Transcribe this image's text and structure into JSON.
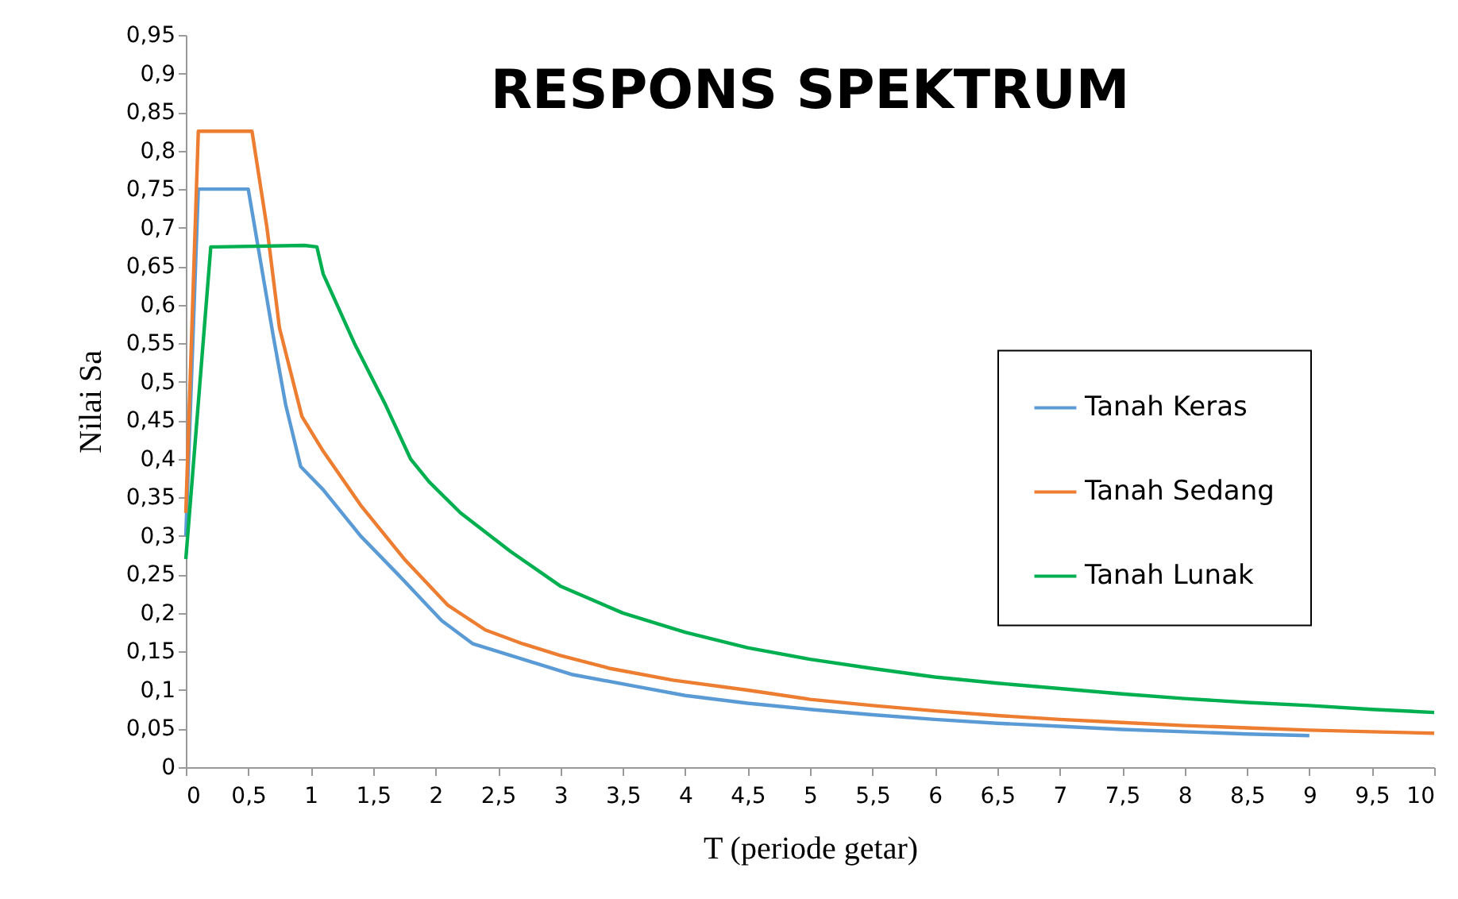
{
  "chart_data": {
    "type": "line",
    "title": "RESPONS SPEKTRUM",
    "xlabel": "T (periode getar)",
    "ylabel": "Nilai Sa",
    "xlim": [
      0,
      10
    ],
    "ylim": [
      0,
      0.95
    ],
    "xticks": [
      0,
      {
        "value": 0.5,
        "label": "0,5"
      },
      1,
      {
        "value": 1.5,
        "label": "1,5"
      },
      2,
      {
        "value": 2.5,
        "label": "2,5"
      },
      3,
      {
        "value": 3.5,
        "label": "3,5"
      },
      4,
      {
        "value": 4.5,
        "label": "4,5"
      },
      5,
      {
        "value": 5.5,
        "label": "5,5"
      },
      6,
      {
        "value": 6.5,
        "label": "6,5"
      },
      7,
      {
        "value": 7.5,
        "label": "7,5"
      },
      8,
      {
        "value": 8.5,
        "label": "8,5"
      },
      9,
      {
        "value": 9.5,
        "label": "9,5"
      },
      10
    ],
    "yticks": [
      0,
      {
        "value": 0.05,
        "label": "0,05"
      },
      {
        "value": 0.1,
        "label": "0,1"
      },
      {
        "value": 0.15,
        "label": "0,15"
      },
      {
        "value": 0.2,
        "label": "0,2"
      },
      {
        "value": 0.25,
        "label": "0,25"
      },
      {
        "value": 0.3,
        "label": "0,3"
      },
      {
        "value": 0.35,
        "label": "0,35"
      },
      {
        "value": 0.4,
        "label": "0,4"
      },
      {
        "value": 0.45,
        "label": "0,45"
      },
      {
        "value": 0.5,
        "label": "0,5"
      },
      {
        "value": 0.55,
        "label": "0,55"
      },
      {
        "value": 0.6,
        "label": "0,6"
      },
      {
        "value": 0.65,
        "label": "0,65"
      },
      {
        "value": 0.7,
        "label": "0,7"
      },
      {
        "value": 0.75,
        "label": "0,75"
      },
      {
        "value": 0.8,
        "label": "0,8"
      },
      {
        "value": 0.85,
        "label": "0,85"
      },
      {
        "value": 0.9,
        "label": "0,9"
      },
      {
        "value": 0.95,
        "label": "0,95"
      }
    ],
    "grid": false,
    "legend": "right",
    "marker": "none",
    "line_style": "solid",
    "series": [
      {
        "name": "Tanah Keras",
        "color": "#5b9bd5",
        "x": [
          0,
          0.1,
          0.5,
          0.7,
          0.8,
          0.92,
          1.1,
          1.4,
          1.7,
          2.05,
          2.3,
          2.7,
          3.1,
          3.6,
          4,
          4.5,
          5,
          5.5,
          6,
          6.5,
          7,
          7.5,
          8,
          8.5,
          9
        ],
        "values": [
          0.3,
          0.75,
          0.75,
          0.56,
          0.47,
          0.39,
          0.36,
          0.3,
          0.25,
          0.19,
          0.16,
          0.14,
          0.12,
          0.105,
          0.093,
          0.083,
          0.075,
          0.068,
          0.062,
          0.057,
          0.053,
          0.049,
          0.046,
          0.043,
          0.041
        ]
      },
      {
        "name": "Tanah Sedang",
        "color": "#ed7d31",
        "x": [
          0,
          0.1,
          0.53,
          0.65,
          0.75,
          0.93,
          1.1,
          1.4,
          1.75,
          2.1,
          2.4,
          2.7,
          3,
          3.4,
          3.9,
          4.5,
          5,
          5.5,
          6,
          6.5,
          7,
          7.5,
          8,
          8.5,
          9,
          9.5,
          10
        ],
        "values": [
          0.33,
          0.825,
          0.825,
          0.7,
          0.57,
          0.455,
          0.41,
          0.34,
          0.27,
          0.21,
          0.178,
          0.16,
          0.145,
          0.128,
          0.113,
          0.1,
          0.088,
          0.08,
          0.073,
          0.067,
          0.062,
          0.058,
          0.054,
          0.051,
          0.048,
          0.046,
          0.044
        ]
      },
      {
        "name": "Tanah Lunak",
        "color": "#00b050",
        "x": [
          0,
          0.2,
          0.25,
          0.95,
          1.05,
          1.1,
          1.35,
          1.6,
          1.8,
          1.95,
          2.2,
          2.6,
          3,
          3.5,
          4,
          4.5,
          5,
          5.5,
          6,
          6.5,
          7,
          7.5,
          8,
          8.5,
          9,
          9.5,
          10
        ],
        "values": [
          0.27,
          0.675,
          0.675,
          0.677,
          0.675,
          0.64,
          0.55,
          0.47,
          0.4,
          0.37,
          0.33,
          0.28,
          0.235,
          0.2,
          0.175,
          0.155,
          0.14,
          0.128,
          0.117,
          0.109,
          0.102,
          0.095,
          0.089,
          0.084,
          0.08,
          0.075,
          0.071
        ]
      }
    ]
  }
}
